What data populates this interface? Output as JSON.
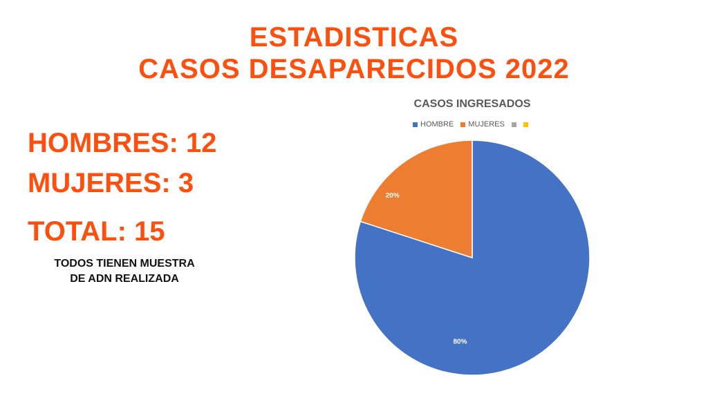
{
  "header": {
    "title_line1": "ESTADISTICAS",
    "title_line2": "CASOS DESAPARECIDOS 2022"
  },
  "stats": {
    "hombres": "HOMBRES: 12",
    "mujeres": "MUJERES: 3",
    "total": "TOTAL: 15"
  },
  "note": {
    "line1": "TODOS TIENEN MUESTRA",
    "line2": "DE ADN REALIZADA"
  },
  "colors": {
    "accent": "#ff4f0f",
    "hombre": "#4472c4",
    "mujeres": "#ed7d31",
    "gray": "#a5a5a5",
    "yellow": "#ffc000"
  },
  "chart_data": {
    "type": "pie",
    "title": "CASOS INGRESADOS",
    "legend_position": "top",
    "categories": [
      "HOMBRE",
      "MUJERES",
      "",
      ""
    ],
    "values": [
      80,
      20,
      0,
      0
    ],
    "data_labels": [
      "80%",
      "20%",
      "",
      ""
    ],
    "legend": [
      {
        "label": "HOMBRE",
        "color": "#4472c4"
      },
      {
        "label": "MUJERES",
        "color": "#ed7d31"
      },
      {
        "label": "",
        "color": "#a5a5a5"
      },
      {
        "label": "",
        "color": "#ffc000"
      }
    ]
  }
}
